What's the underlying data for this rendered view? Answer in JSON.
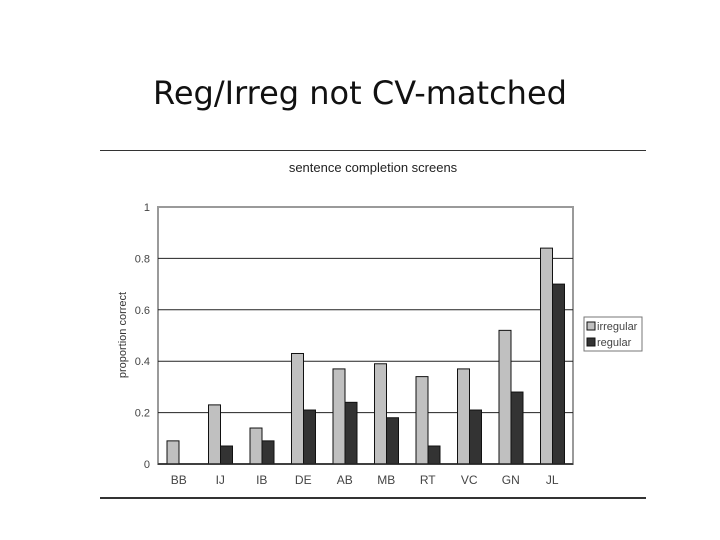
{
  "slide": {
    "title": "Reg/Irreg not CV-matched"
  },
  "chart_data": {
    "type": "bar",
    "title": "sentence completion screens",
    "xlabel": "",
    "ylabel": "proportion correct",
    "ylim": [
      0,
      1
    ],
    "yticks": [
      "0",
      "0.2",
      "0.4",
      "0.6",
      "0.8",
      "1"
    ],
    "categories": [
      "BB",
      "IJ",
      "IB",
      "DE",
      "AB",
      "MB",
      "RT",
      "VC",
      "GN",
      "JL"
    ],
    "series": [
      {
        "name": "irregular",
        "color": "#c0c0c0",
        "values": [
          0.09,
          0.23,
          0.14,
          0.43,
          0.37,
          0.39,
          0.34,
          0.37,
          0.52,
          0.84
        ]
      },
      {
        "name": "regular",
        "color": "#333333",
        "values": [
          0.0,
          0.07,
          0.09,
          0.21,
          0.24,
          0.18,
          0.07,
          0.21,
          0.28,
          0.7
        ]
      }
    ],
    "grid": true,
    "legend_position": "right"
  }
}
